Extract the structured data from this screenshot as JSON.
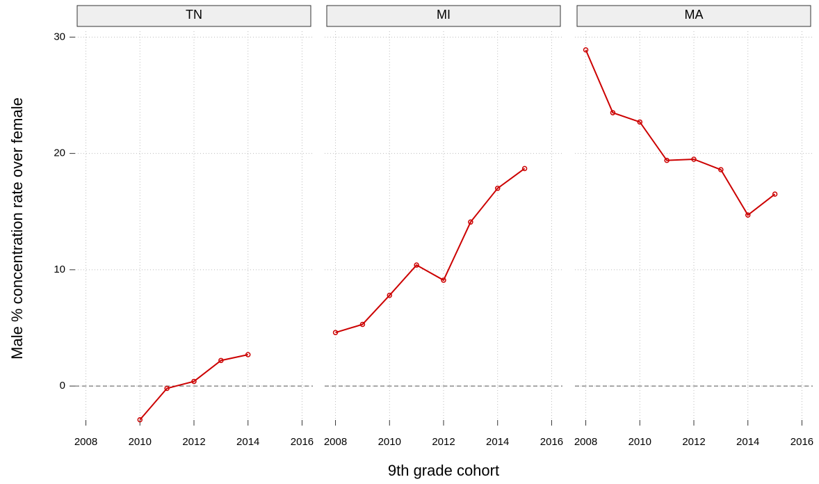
{
  "chart_data": [
    {
      "type": "line",
      "title": "TN",
      "ylabel": "Male % concentration rate over female",
      "x": [
        2010,
        2011,
        2012,
        2013,
        2014
      ],
      "values": [
        -2.9,
        -0.2,
        0.4,
        2.2,
        2.7
      ],
      "color": "#cc0000",
      "xlim": [
        2007.6,
        2016.4
      ],
      "xticks": [
        2008,
        2010,
        2012,
        2014,
        2016
      ],
      "ylim": [
        -3.4,
        30.5
      ],
      "yticks": [
        0,
        10,
        20,
        30
      ],
      "grid": true,
      "hline": 0
    },
    {
      "type": "line",
      "title": "MI",
      "xlabel": "9th grade cohort",
      "x": [
        2008,
        2009,
        2010,
        2011,
        2012,
        2013,
        2014,
        2015
      ],
      "values": [
        4.6,
        5.3,
        7.8,
        10.4,
        9.1,
        14.1,
        17.0,
        18.7
      ],
      "color": "#cc0000",
      "xlim": [
        2007.6,
        2016.4
      ],
      "xticks": [
        2008,
        2010,
        2012,
        2014,
        2016
      ],
      "ylim": [
        -3.4,
        30.5
      ],
      "yticks": [
        0,
        10,
        20,
        30
      ],
      "grid": true,
      "hline": 0
    },
    {
      "type": "line",
      "title": "MA",
      "x": [
        2008,
        2009,
        2010,
        2011,
        2012,
        2013,
        2014,
        2015
      ],
      "values": [
        28.9,
        23.5,
        22.7,
        19.4,
        19.5,
        18.6,
        14.7,
        16.5
      ],
      "color": "#cc0000",
      "xlim": [
        2007.6,
        2016.4
      ],
      "xticks": [
        2008,
        2010,
        2012,
        2014,
        2016
      ],
      "ylim": [
        -3.4,
        30.5
      ],
      "yticks": [
        0,
        10,
        20,
        30
      ],
      "grid": true,
      "hline": 0
    }
  ]
}
